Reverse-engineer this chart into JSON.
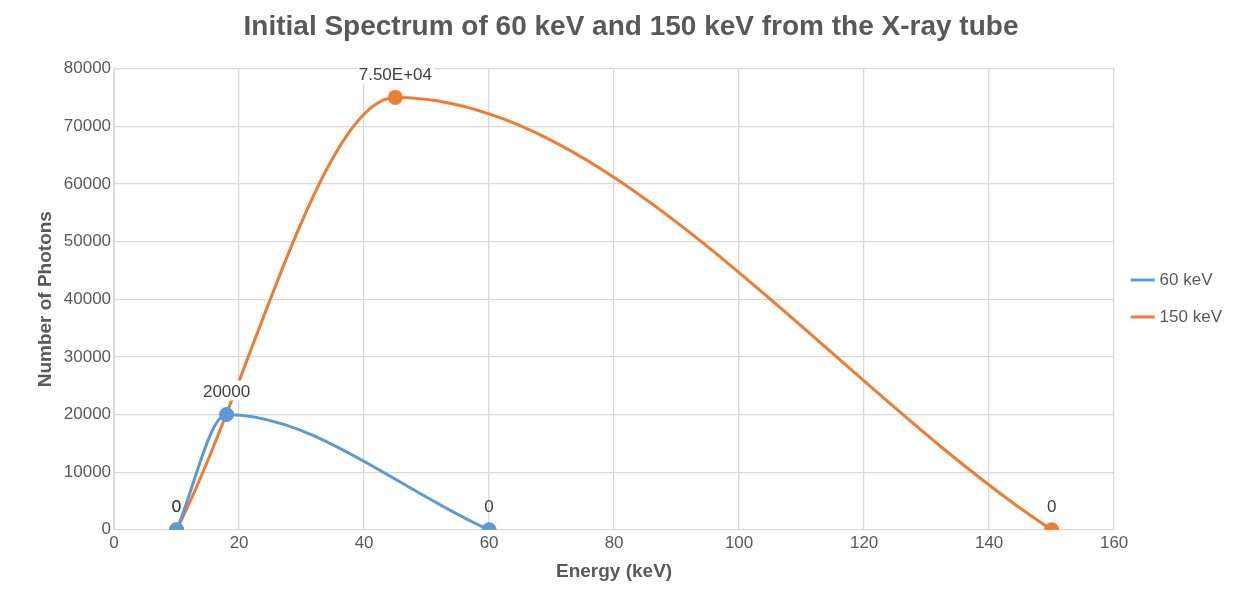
{
  "chart_data": {
    "type": "line",
    "title": "Initial Spectrum of 60 keV and 150 keV from the X-ray tube",
    "xlabel": "Energy (keV)",
    "ylabel": "Number of Photons",
    "series": [
      {
        "name": "60 keV",
        "color": "#5b9bd5",
        "x": [
          10,
          18,
          60
        ],
        "values": [
          0,
          20000,
          0
        ],
        "value_labels": [
          "0",
          "20000",
          "0"
        ]
      },
      {
        "name": "150 keV",
        "color": "#ed7d31",
        "x": [
          10,
          45,
          150
        ],
        "values": [
          0,
          75000,
          0
        ],
        "value_labels": [
          "0",
          "7.50E+04",
          "0"
        ]
      }
    ],
    "xlim": [
      0,
      160
    ],
    "xticks": [
      0,
      20,
      40,
      60,
      80,
      100,
      120,
      140,
      160
    ],
    "ylim": [
      0,
      80000
    ],
    "yticks": [
      0,
      10000,
      20000,
      30000,
      40000,
      50000,
      60000,
      70000,
      80000
    ],
    "grid": true,
    "legend": "right",
    "marker": "circle",
    "line_style": "solid"
  }
}
